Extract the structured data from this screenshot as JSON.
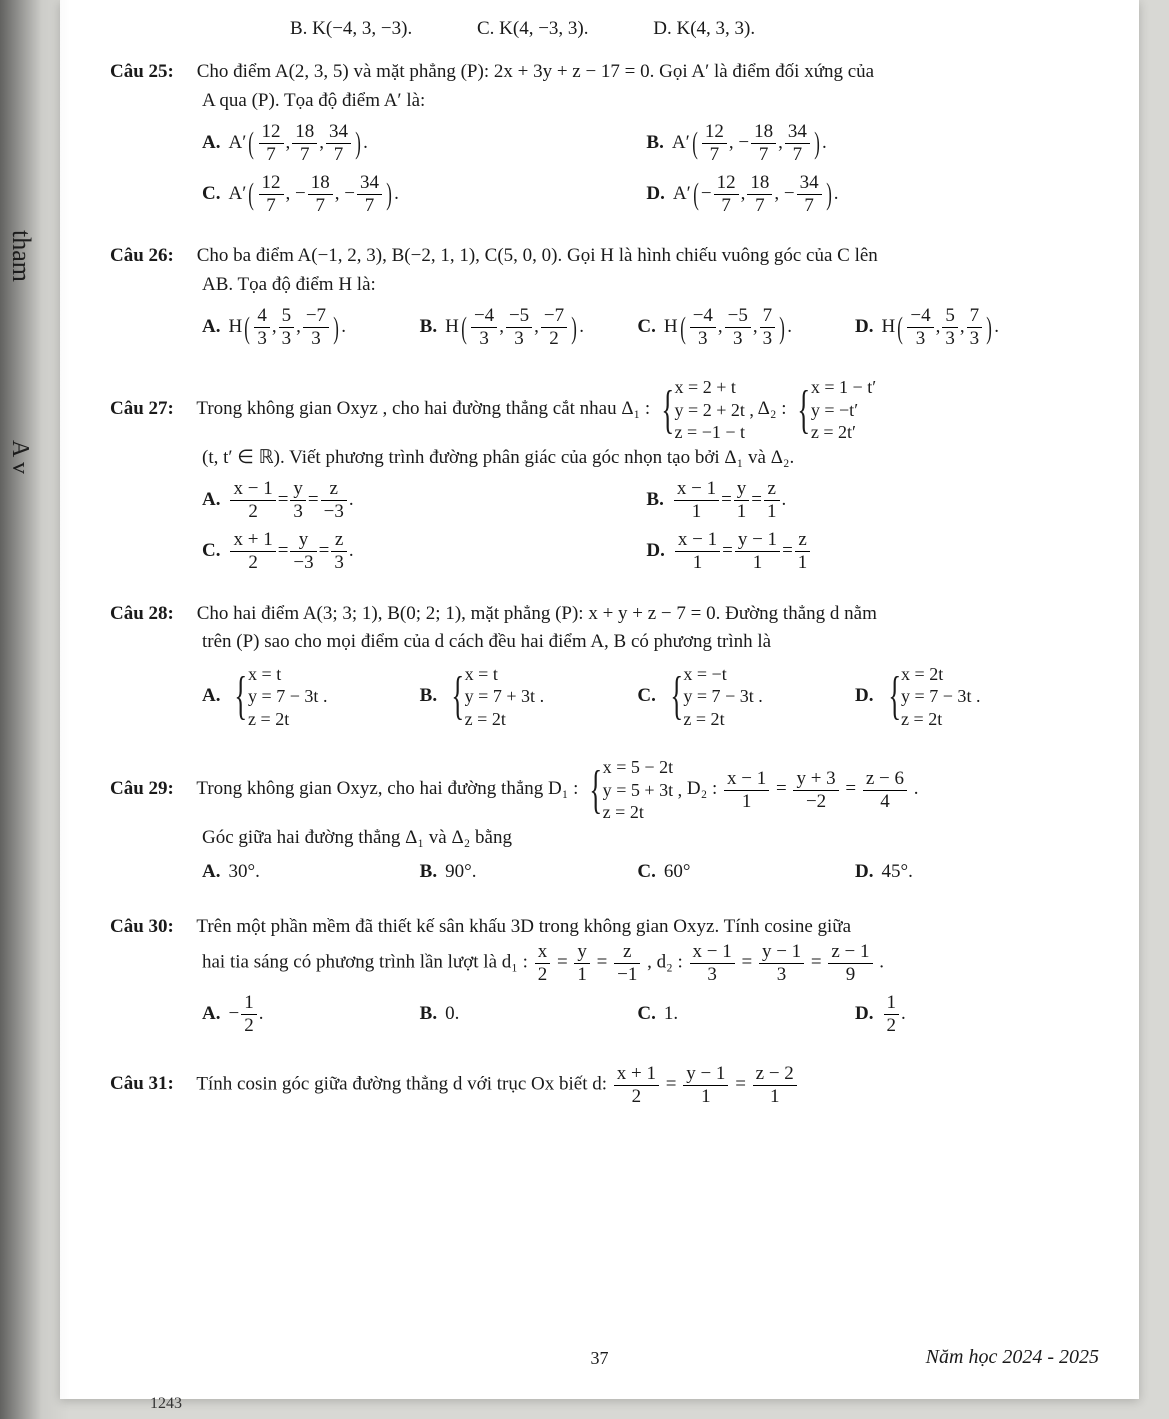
{
  "spine": {
    "tham": "tham",
    "Av": "A v"
  },
  "top_row": {
    "b": "B. K(−4, 3, −3).",
    "c": "C. K(4, −3, 3).",
    "d": "D. K(4, 3, 3)."
  },
  "q25": {
    "label": "Câu 25:",
    "stem1": "Cho điểm A(2, 3, 5) và mặt phẳng (P): 2x + 3y + z − 17 = 0. Gọi A′ là điểm đối xứng của",
    "stem2": "A qua (P). Tọa độ điểm A′ là:",
    "A_lbl": "A.",
    "A_pre": "A′",
    "B_lbl": "B.",
    "B_pre": "A′",
    "C_lbl": "C.",
    "C_pre": "A′",
    "D_lbl": "D.",
    "D_pre": "A′",
    "n12": "12",
    "n18": "18",
    "n34": "34",
    "d7": "7",
    "neg18": "18",
    "neg34": "34",
    "neg12": "12"
  },
  "q26": {
    "label": "Câu 26:",
    "stem1": "Cho ba điểm A(−1, 2, 3), B(−2, 1, 1), C(5, 0, 0). Gọi H là hình chiếu vuông góc của C lên",
    "stem2": "AB. Tọa độ điểm H là:",
    "A_lbl": "A.",
    "H": "H",
    "B_lbl": "B.",
    "C_lbl": "C.",
    "D_lbl": "D.",
    "na4": "4",
    "na5": "5",
    "na7": "−7",
    "d3": "3",
    "nb4": "−4",
    "nb5": "−5",
    "nb7": "−7",
    "d2": "2",
    "nc4": "−4",
    "nc5": "−5",
    "nc7": "7",
    "nd4": "−4",
    "nd5": "5",
    "nd7": "7"
  },
  "q27": {
    "label": "Câu 27:",
    "stem": "Trong không gian Oxyz , cho hai đường thẳng cắt nhau Δ₁ :",
    "sys1a": "x = 2 + t",
    "sys1b": "y = 2 + 2t ,",
    "sys1c": "z = −1 − t",
    "mid": "Δ₂ :",
    "sys2a": "x = 1 − t′",
    "sys2b": "y = −t′",
    "sys2c": "z = 2t′",
    "line2": "(t, t′ ∈ ℝ). Viết phương trình đường phân giác của góc nhọn tạo bởi Δ₁ và Δ₂.",
    "A_lbl": "A.",
    "B_lbl": "B.",
    "C_lbl": "C.",
    "D_lbl": "D.",
    "xA": "x − 1",
    "yA": "y",
    "zA": "z",
    "dA1": "2",
    "dA2": "3",
    "dA3": "−3",
    "xB": "x − 1",
    "yB": "y",
    "zB": "z",
    "dB1": "1",
    "dB2": "1",
    "dB3": "1",
    "xC": "x + 1",
    "yC": "y",
    "zC": "z",
    "dC1": "2",
    "dC2": "−3",
    "dC3": "3",
    "xD": "x − 1",
    "yD": "y − 1",
    "zD": "z",
    "dD1": "1",
    "dD2": "1",
    "dD3": "1"
  },
  "q28": {
    "label": "Câu 28:",
    "stem1": "Cho hai điểm A(3; 3; 1), B(0; 2; 1), mặt phẳng (P): x + y + z − 7 = 0. Đường thẳng d nằm",
    "stem2": "trên (P) sao cho mọi điểm của d cách đều hai điểm A, B có phương trình là",
    "A_lbl": "A.",
    "B_lbl": "B.",
    "C_lbl": "C.",
    "D_lbl": "D.",
    "Aa": "x = t",
    "Ab": "y = 7 − 3t .",
    "Ac": "z = 2t",
    "Ba": "x = t",
    "Bb": "y = 7 + 3t .",
    "Bc": "z = 2t",
    "Ca": "x = −t",
    "Cb": "y = 7 − 3t .",
    "Cc": "z = 2t",
    "Da": "x = 2t",
    "Db": "y = 7 − 3t .",
    "Dc": "z = 2t"
  },
  "q29": {
    "label": "Câu 29:",
    "stem": "Trong không gian Oxyz, cho hai đường thẳng D₁ :",
    "sys1a": "x = 5 − 2t",
    "sys1b": "y = 5 + 3t ,",
    "sys1c": "z = 2t",
    "mid": "D₂ :",
    "d2x": "x − 1",
    "d2y": "y + 3",
    "d2z": "z − 6",
    "d2a": "1",
    "d2b": "−2",
    "d2c": "4",
    "dot": ".",
    "line2": "Góc giữa hai đường thẳng Δ₁ và Δ₂ bằng",
    "A_lbl": "A.",
    "A_txt": "30°.",
    "B_lbl": "B.",
    "B_txt": "90°.",
    "C_lbl": "C.",
    "C_txt": "60°",
    "D_lbl": "D.",
    "D_txt": "45°."
  },
  "q30": {
    "label": "Câu 30:",
    "stem1": "Trên một phần mềm đã thiết kế sân khấu 3D trong không gian Oxyz. Tính cosine giữa",
    "stem2": "hai tia sáng có phương trình lần lượt là d₁ :",
    "d1x": "x",
    "d1y": "y",
    "d1z": "z",
    "d1a": "2",
    "d1b": "1",
    "d1c": "−1",
    "mid": ", d₂ :",
    "d2x": "x − 1",
    "d2y": "y − 1",
    "d2z": "z − 1",
    "d2a": "3",
    "d2b": "3",
    "d2c": "9",
    "dot": ".",
    "A_lbl": "A.",
    "A_n": "1",
    "A_d": "2",
    "A_pre": "−",
    "B_lbl": "B.",
    "B_txt": "0.",
    "C_lbl": "C.",
    "C_txt": "1.",
    "D_lbl": "D.",
    "D_n": "1",
    "D_d": "2",
    "D_post": "."
  },
  "q31": {
    "label": "Câu 31:",
    "stem": "Tính cosin góc giữa đường thẳng d với trục Ox biết d:",
    "nx": "x + 1",
    "ny": "y − 1",
    "nz": "z − 2",
    "dx": "2",
    "dy": "1",
    "dz": "1"
  },
  "footer": {
    "page": "37",
    "year": "Năm học 2024 - 2025",
    "corner": "1243"
  }
}
